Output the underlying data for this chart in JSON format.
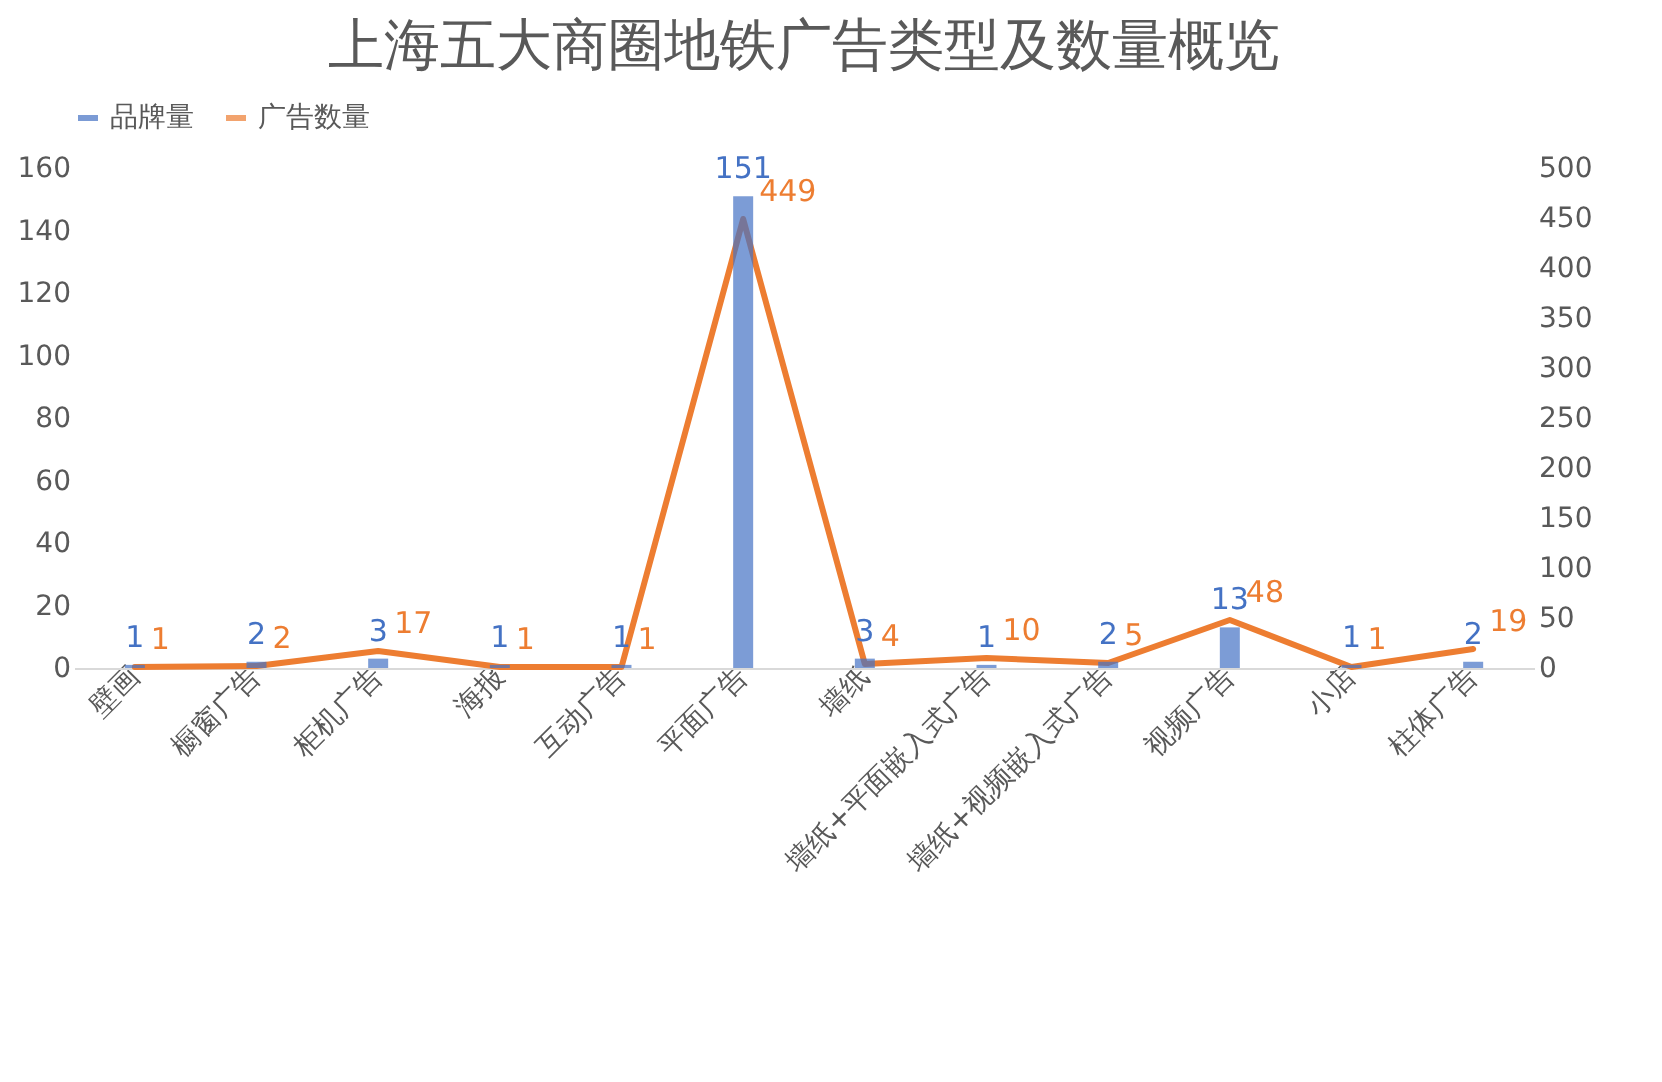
{
  "chart_data": {
    "type": "bar",
    "title": "上海五大商圈地铁广告类型及数量概览",
    "categories": [
      "壁画",
      "橱窗广告",
      "柜机广告",
      "海报",
      "互动广告",
      "平面广告",
      "墙纸",
      "墙纸+平面嵌入式广告",
      "墙纸+视频嵌入式广告",
      "视频广告",
      "小店",
      "柱体广告"
    ],
    "series": [
      {
        "name": "品牌量",
        "color": "#4472c4",
        "values": [
          1,
          2,
          3,
          1,
          1,
          151,
          3,
          1,
          2,
          13,
          1,
          2
        ]
      },
      {
        "name": "广告数量",
        "type": "line",
        "axis": "y2",
        "color": "#ed7d31",
        "values": [
          1,
          2,
          17,
          1,
          1,
          449,
          4,
          10,
          5,
          48,
          1,
          19
        ]
      }
    ],
    "ylim": [
      0,
      160
    ],
    "yticks": [
      0,
      20,
      40,
      60,
      80,
      100,
      120,
      140,
      160
    ],
    "y2lim": [
      0,
      500
    ],
    "y2ticks": [
      0,
      50,
      100,
      150,
      200,
      250,
      300,
      350,
      400,
      450,
      500
    ],
    "legend": "top",
    "data_labels": true
  }
}
